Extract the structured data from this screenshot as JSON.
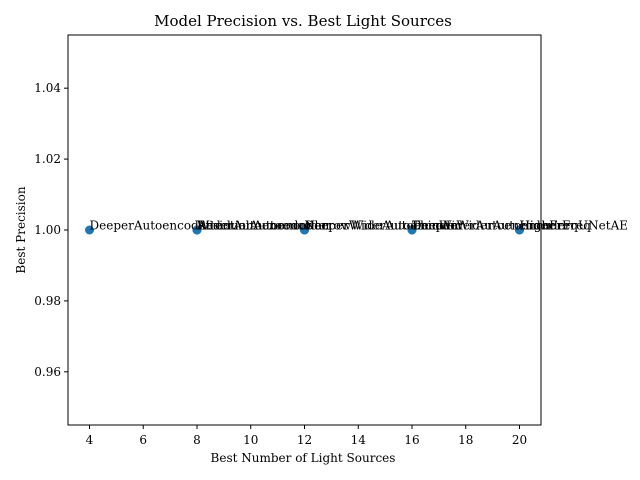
{
  "chart_data": {
    "type": "scatter",
    "title": "Model Precision vs. Best Light Sources",
    "xlabel": "Best Number of Light Sources",
    "ylabel": "Best Precision",
    "xlim": [
      3.2,
      20.8
    ],
    "ylim": [
      0.945,
      1.055
    ],
    "xticks": [
      4,
      6,
      8,
      10,
      12,
      14,
      16,
      18,
      20
    ],
    "yticks": [
      0.96,
      0.98,
      1.0,
      1.02,
      1.04
    ],
    "ytick_labels": [
      "0.96",
      "0.98",
      "1.00",
      "1.02",
      "1.04"
    ],
    "grid": false,
    "marker_color": "#1f77b4",
    "points": [
      {
        "x": 4,
        "y": 1.0,
        "label": "DeeperAutoencoder"
      },
      {
        "x": 8,
        "y": 1.0,
        "label": "WiderAutoencoder"
      },
      {
        "x": 8,
        "y": 1.0,
        "label": "ResidualAutoencoder"
      },
      {
        "x": 8,
        "y": 1.0,
        "label": "AttentionAutoencoder"
      },
      {
        "x": 12,
        "y": 1.0,
        "label": "NarrowWideAutoencoder"
      },
      {
        "x": 12,
        "y": 1.0,
        "label": "DeeperWiderAutoencoder"
      },
      {
        "x": 16,
        "y": 1.0,
        "label": "ThinWiderAutoencoder"
      },
      {
        "x": 16,
        "y": 1.0,
        "label": "DeeperWiderAutoencoder"
      },
      {
        "x": 20,
        "y": 1.0,
        "label": "HighFreqUNetAE"
      },
      {
        "x": 20,
        "y": 1.0,
        "label": "HigherFreq"
      }
    ]
  }
}
